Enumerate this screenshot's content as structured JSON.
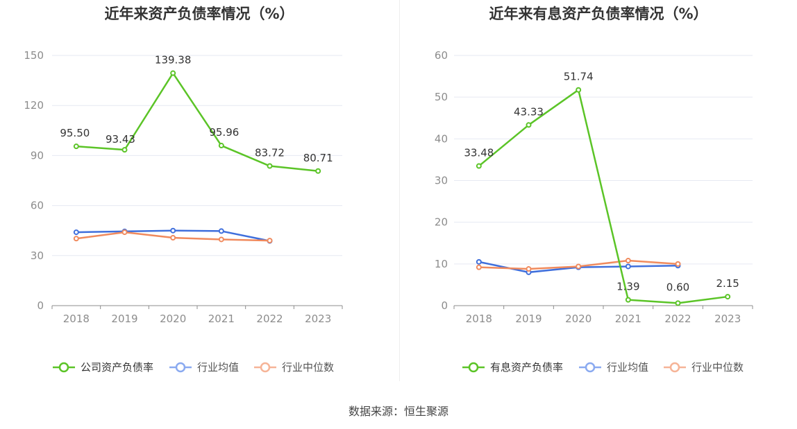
{
  "source_text": "数据来源：恒生聚源",
  "colors": {
    "company": "#5bc427",
    "industry_avg": "#3f6fdc",
    "industry_median": "#f08a5d",
    "legend_avg": "#8aaaf0",
    "legend_median": "#f6b497"
  },
  "chart_data": [
    {
      "type": "line",
      "title": "近年来资产负债率情况（%）",
      "categories": [
        "2018",
        "2019",
        "2020",
        "2021",
        "2022",
        "2023"
      ],
      "ylim": [
        0,
        150
      ],
      "yticks": [
        "0",
        "30",
        "60",
        "90",
        "120",
        "150"
      ],
      "grid": true,
      "legend_position": "bottom",
      "series": [
        {
          "name": "公司资产负债率",
          "values": [
            95.5,
            93.43,
            139.38,
            95.96,
            83.72,
            80.71
          ],
          "labels": [
            "95.50",
            "93.43",
            "139.38",
            "95.96",
            "83.72",
            "80.71"
          ]
        },
        {
          "name": "行业均值",
          "values": [
            44.0,
            44.5,
            45.0,
            44.7,
            38.8,
            null
          ]
        },
        {
          "name": "行业中位数",
          "values": [
            40.2,
            44.0,
            40.7,
            39.7,
            39.0,
            null
          ]
        }
      ]
    },
    {
      "type": "line",
      "title": "近年来有息资产负债率情况（%）",
      "categories": [
        "2018",
        "2019",
        "2020",
        "2021",
        "2022",
        "2023"
      ],
      "ylim": [
        0,
        60
      ],
      "yticks": [
        "0",
        "10",
        "20",
        "30",
        "40",
        "50",
        "60"
      ],
      "grid": true,
      "legend_position": "bottom",
      "series": [
        {
          "name": "有息资产负债率",
          "values": [
            33.48,
            43.33,
            51.74,
            1.39,
            0.6,
            2.15
          ],
          "labels": [
            "33.48",
            "43.33",
            "51.74",
            "1.39",
            "0.60",
            "2.15"
          ]
        },
        {
          "name": "行业均值",
          "values": [
            10.5,
            8.0,
            9.2,
            9.4,
            9.6,
            null
          ]
        },
        {
          "name": "行业中位数",
          "values": [
            9.2,
            8.8,
            9.4,
            10.8,
            10.0,
            null
          ]
        }
      ]
    }
  ]
}
